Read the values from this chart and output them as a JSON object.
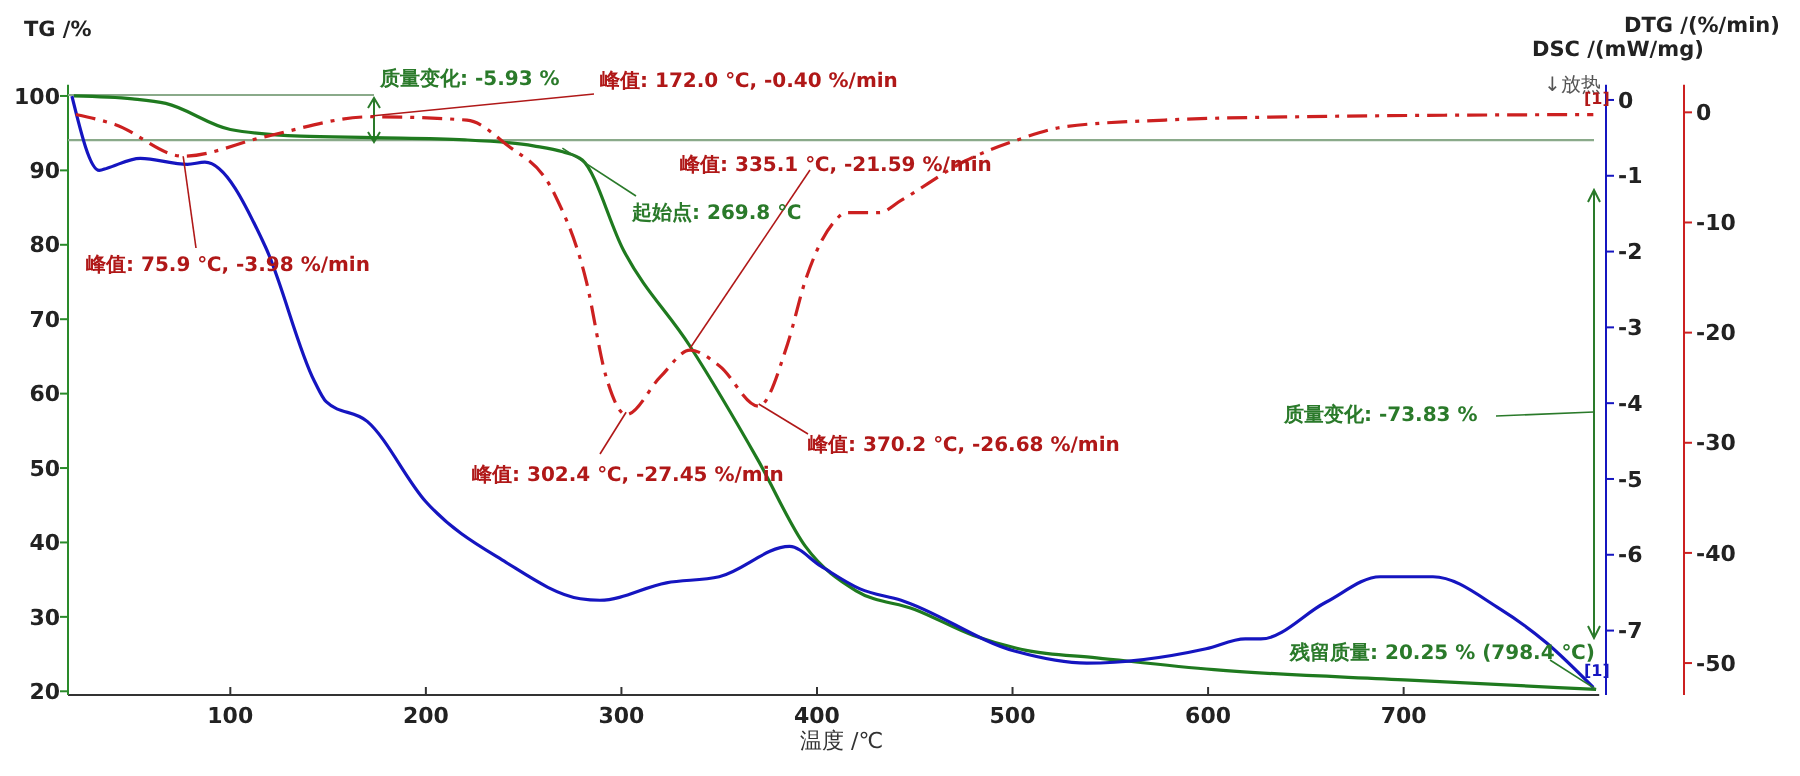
{
  "chart_data": {
    "type": "line",
    "xlabel": "温度 /℃",
    "ylabel": "TG /%",
    "y2label": "DSC /(mW/mg)",
    "y3label": "DTG /(%/min)",
    "xlim": [
      17,
      800
    ],
    "xticks": [
      100,
      200,
      300,
      400,
      500,
      600,
      700
    ],
    "ylim": [
      19.5,
      101.5
    ],
    "yticks": [
      20,
      30,
      40,
      50,
      60,
      70,
      80,
      90,
      100
    ],
    "y2lim": [
      -7.85,
      0.2
    ],
    "y2ticks": [
      0,
      -1,
      -2,
      -3,
      -4,
      -5,
      -6,
      -7
    ],
    "y3lim": [
      -52.9,
      2.5
    ],
    "y3ticks": [
      0,
      -10,
      -20,
      -30,
      -40,
      -50
    ],
    "grid": false,
    "marker": "none",
    "series": [
      {
        "type": "line",
        "color": "#1f7a1f",
        "axis": "y",
        "line_style": "solid",
        "x": [
          20,
          50,
          67,
          100,
          136,
          173,
          220,
          255,
          270,
          280,
          301,
          335,
          370,
          394,
          420,
          450,
          480,
          507,
          543,
          603,
          703,
          798.4
        ],
        "values": [
          100,
          99.6,
          99,
          95.5,
          94.6,
          94.4,
          94.1,
          93.3,
          92.5,
          91.4,
          79.3,
          66.4,
          51,
          39.5,
          33.5,
          31,
          27.5,
          25.5,
          24.5,
          22.9,
          21.5,
          20.25
        ]
      },
      {
        "type": "line",
        "color": "#1515c0",
        "axis": "y2",
        "line_style": "solid",
        "x": [
          19,
          33,
          37,
          54,
          78,
          87,
          118,
          143,
          149,
          170,
          200,
          241,
          279,
          289,
          323,
          350,
          386,
          402,
          422,
          443,
          501,
          538,
          599,
          619,
          627,
          660,
          688,
          715,
          749,
          773,
          797
        ],
        "values": [
          0.05,
          -0.93,
          -0.9,
          -0.77,
          -0.85,
          -0.82,
          -1.94,
          -3.71,
          -3.98,
          -4.24,
          -5.3,
          -6.1,
          -6.58,
          -6.6,
          -6.37,
          -6.29,
          -5.89,
          -6.15,
          -6.45,
          -6.6,
          -7.27,
          -7.43,
          -7.24,
          -7.11,
          -7.11,
          -6.63,
          -6.29,
          -6.29,
          -6.71,
          -7.16,
          -7.75
        ]
      },
      {
        "type": "line",
        "color": "#cc2020",
        "axis": "y3",
        "line_style": "dashed",
        "x": [
          21,
          41,
          75.9,
          118,
          172,
          221,
          241,
          266,
          282,
          292,
          302.4,
          320,
          335.1,
          350,
          370.2,
          385,
          394,
          409,
          415,
          432,
          443,
          476,
          501,
          527,
          578,
          647,
          797
        ],
        "values": [
          -0.2,
          -1.1,
          -3.98,
          -2.2,
          -0.4,
          -0.7,
          -2.9,
          -7.5,
          -15.3,
          -23.9,
          -27.45,
          -24,
          -21.59,
          -23,
          -26.68,
          -21,
          -15.3,
          -9.9,
          -9.1,
          -9.1,
          -8,
          -4.4,
          -2.6,
          -1.3,
          -0.7,
          -0.4,
          -0.2
        ]
      }
    ],
    "ref_lines": [
      {
        "axis": "y",
        "value": 94.07,
        "color": "#8aaa8a"
      }
    ],
    "annotations": [
      {
        "text": "质量变化: -5.93 %",
        "x": 172,
        "y": 97
      },
      {
        "text": "峰值: 172.0 ℃, -0.40 %/min",
        "x": 172,
        "y": 97.3
      },
      {
        "text": "峰值: 335.1 ℃, -21.59 %/min",
        "x": 335.1,
        "y": 66.1
      },
      {
        "text": "起始点: 269.8 ℃",
        "x": 269.8,
        "y": 93
      },
      {
        "text": "峰值: 75.9 ℃, -3.98 %/min",
        "x": 75.9,
        "y": 91.9
      },
      {
        "text": "峰值: 302.4 ℃, -27.45 %/min",
        "x": 302.4,
        "y": 57.5
      },
      {
        "text": "峰值: 370.2 ℃, -26.68 %/min",
        "x": 370.2,
        "y": 58.6
      },
      "质量变化: -73.83 %",
      {
        "text": "残留质量: 20.25 % (798.4 ℃)",
        "x": 798.4,
        "y": 20.25
      },
      "↓放热",
      "[1]",
      "[1]"
    ]
  }
}
